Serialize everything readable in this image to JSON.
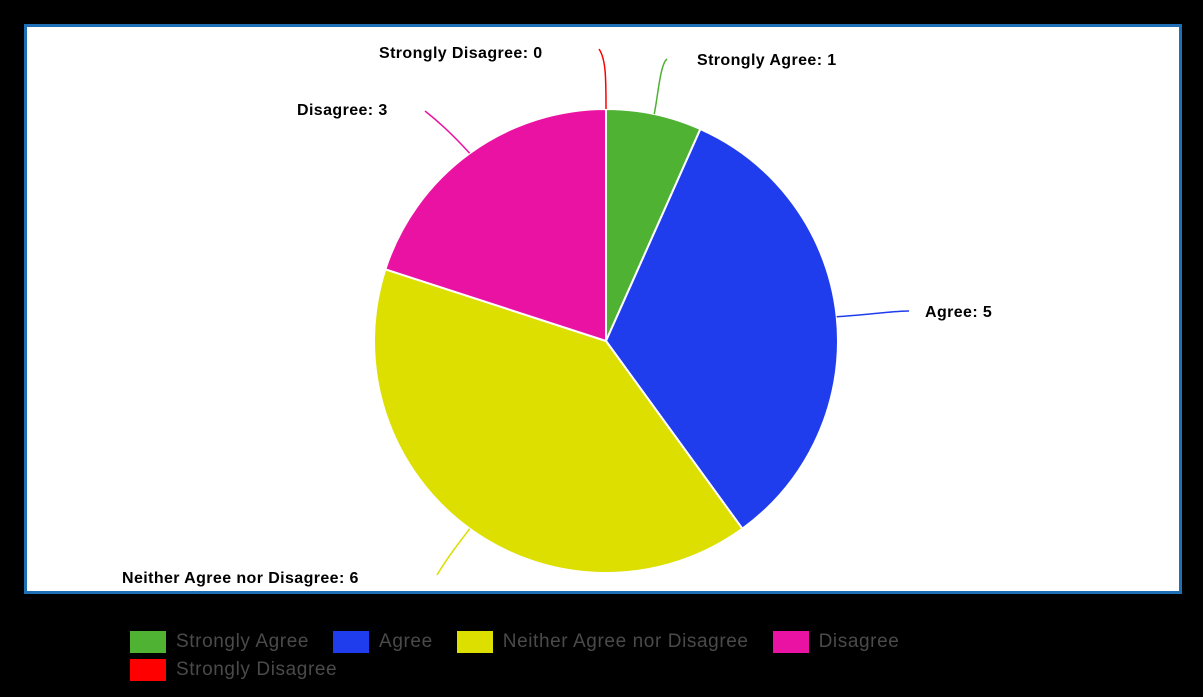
{
  "chart_data": {
    "type": "pie",
    "categories": [
      "Strongly Agree",
      "Agree",
      "Neither Agree nor Disagree",
      "Disagree",
      "Strongly Disagree"
    ],
    "values": [
      1,
      5,
      6,
      3,
      0
    ],
    "colors": [
      "#4fb233",
      "#1f3ded",
      "#dcdf00",
      "#ea12a2",
      "#ff0000"
    ],
    "slice_labels": [
      "Strongly Agree: 1",
      "Agree: 5",
      "Neither Agree nor Disagree: 6",
      "Disagree: 3",
      "Strongly Disagree: 0"
    ],
    "legend_position": "bottom",
    "start_angle": "top",
    "direction": "clockwise"
  },
  "legend": {
    "items": [
      {
        "label": "Strongly Agree",
        "color": "#4fb233"
      },
      {
        "label": "Agree",
        "color": "#1f3ded"
      },
      {
        "label": "Neither Agree nor Disagree",
        "color": "#dcdf00"
      },
      {
        "label": "Disagree",
        "color": "#ea12a2"
      },
      {
        "label": "Strongly Disagree",
        "color": "#ff0000"
      }
    ]
  },
  "frame_color": "#1f6fb6"
}
